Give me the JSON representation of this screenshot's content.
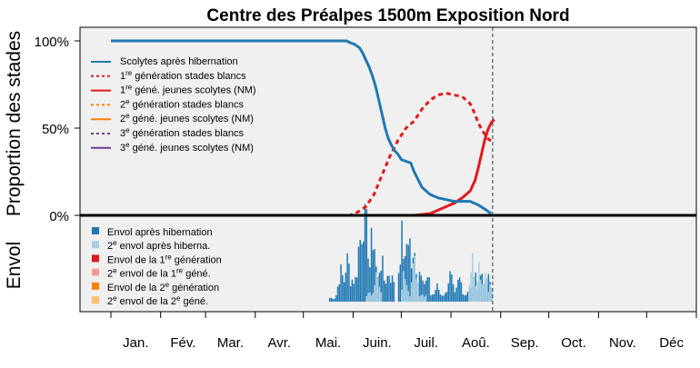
{
  "chart_data": {
    "type": "line",
    "title": "Centre des Préalpes 1500m Exposition Nord",
    "ylabel_top": "Proportion des stades",
    "ylabel_bottom": "Envol",
    "y_ticks": [
      {
        "value": 0,
        "label": "0%"
      },
      {
        "value": 0.5,
        "label": "50%"
      },
      {
        "value": 1,
        "label": "100%"
      }
    ],
    "months": [
      "Jan.",
      "Fév.",
      "Mar.",
      "Avr.",
      "Mai.",
      "Juin.",
      "Juil.",
      "Aoû.",
      "Sep.",
      "Oct.",
      "Nov.",
      "Déc"
    ],
    "month_starts": [
      1,
      32,
      60,
      91,
      121,
      152,
      182,
      213,
      244,
      274,
      305,
      335
    ],
    "x_range": [
      1,
      366
    ],
    "current_day": 239,
    "colors": {
      "panel_bg": "#f0f0f0",
      "scolytes": "#1f78b4",
      "gen1": "#e31a1c",
      "gen2": "#ff7f00",
      "gen3": "#6a3d9a",
      "envol1": "#1f78b4",
      "envol2": "#a6cee3",
      "envol_gen1": "#e31a1c",
      "envol2_gen1": "#fb9a99",
      "envol_gen2": "#ff7f00",
      "envol2_gen2": "#fdbf6f"
    },
    "legend_top": [
      {
        "pre": "Scolytes après hibernation",
        "sup": "",
        "post": "",
        "color": "#1f78b4",
        "dash": false
      },
      {
        "pre": "1",
        "sup": "re",
        "post": " génération stades blancs",
        "color": "#e31a1c",
        "dash": true
      },
      {
        "pre": "1",
        "sup": "re",
        "post": " géné. jeunes scolytes (NM)",
        "color": "#e31a1c",
        "dash": false
      },
      {
        "pre": "2",
        "sup": "e",
        "post": " génération stades blancs",
        "color": "#ff7f00",
        "dash": true
      },
      {
        "pre": "2",
        "sup": "e",
        "post": " géné. jeunes scolytes (NM)",
        "color": "#ff7f00",
        "dash": false
      },
      {
        "pre": "3",
        "sup": "e",
        "post": " génération stades blancs",
        "color": "#6a3d9a",
        "dash": true
      },
      {
        "pre": "3",
        "sup": "e",
        "post": " géné. jeunes scolytes (NM)",
        "color": "#6a3d9a",
        "dash": false
      }
    ],
    "legend_bottom": [
      {
        "pre": "Envol après hibernation",
        "sup": "",
        "post": "",
        "mid": "",
        "sup2": "",
        "post2": "",
        "color": "#1f78b4"
      },
      {
        "pre": "2",
        "sup": "e",
        "post": " envol après hiberna.",
        "mid": "",
        "sup2": "",
        "post2": "",
        "color": "#a6cee3"
      },
      {
        "pre": "Envol de la 1",
        "sup": "re",
        "post": " génération",
        "mid": "",
        "sup2": "",
        "post2": "",
        "color": "#e31a1c"
      },
      {
        "pre": "2",
        "sup": "e",
        "post": " envol de la 1",
        "mid": "",
        "sup2": "re",
        "post2": " géné.",
        "color": "#fb9a99"
      },
      {
        "pre": "Envol de la 2",
        "sup": "e",
        "post": " génération",
        "mid": "",
        "sup2": "",
        "post2": "",
        "color": "#ff7f00"
      },
      {
        "pre": "2",
        "sup": "e",
        "post": " envol de la 2",
        "mid": "",
        "sup2": "e",
        "post2": " géné.",
        "color": "#fdbf6f"
      }
    ],
    "series": {
      "scolytes": {
        "x": [
          1,
          100,
          140,
          148,
          150,
          153,
          156,
          158,
          160,
          162,
          164,
          166,
          168,
          170,
          172,
          174,
          176,
          178,
          180,
          182,
          185,
          188,
          190,
          195,
          200,
          205,
          210,
          215,
          220,
          225,
          230,
          235,
          238
        ],
        "y": [
          1.0,
          1.0,
          1.0,
          1.0,
          0.99,
          0.98,
          0.96,
          0.93,
          0.89,
          0.85,
          0.8,
          0.74,
          0.66,
          0.58,
          0.5,
          0.44,
          0.4,
          0.37,
          0.35,
          0.32,
          0.31,
          0.3,
          0.25,
          0.16,
          0.12,
          0.1,
          0.09,
          0.08,
          0.08,
          0.08,
          0.06,
          0.03,
          0.01
        ]
      },
      "gen1_blancs": {
        "x": [
          1,
          150,
          155,
          160,
          165,
          170,
          175,
          180,
          185,
          190,
          195,
          200,
          205,
          210,
          215,
          220,
          225,
          228,
          230,
          233,
          236,
          239
        ],
        "y": [
          0,
          0,
          0.02,
          0.05,
          0.12,
          0.23,
          0.34,
          0.43,
          0.5,
          0.54,
          0.61,
          0.66,
          0.69,
          0.7,
          0.69,
          0.68,
          0.64,
          0.58,
          0.53,
          0.48,
          0.44,
          0.42
        ]
      },
      "gen1_jeunes": {
        "x": [
          1,
          190,
          200,
          205,
          210,
          215,
          220,
          225,
          228,
          230,
          232,
          234,
          236,
          238,
          240
        ],
        "y": [
          0,
          0,
          0.01,
          0.03,
          0.05,
          0.07,
          0.1,
          0.14,
          0.2,
          0.27,
          0.35,
          0.43,
          0.49,
          0.53,
          0.55
        ]
      }
    },
    "envol": {
      "ymax": 1,
      "blocks": [
        {
          "name": "envol-hib-1",
          "color": "#1f78b4",
          "start": 137,
          "end": 150,
          "base": 0.05,
          "peaks": [
            [
              144,
              0.4
            ],
            [
              148,
              0.55
            ]
          ]
        },
        {
          "name": "envol-hib-2",
          "color": "#1f78b4",
          "start": 150,
          "end": 178,
          "base": 0.3,
          "peaks": [
            [
              156,
              0.85
            ],
            [
              158,
              1.2
            ],
            [
              160,
              0.95
            ],
            [
              164,
              0.9
            ],
            [
              169,
              0.55
            ],
            [
              174,
              0.4
            ]
          ]
        },
        {
          "name": "envol-hib-3",
          "color": "#1f78b4",
          "start": 180,
          "end": 200,
          "base": 0.2,
          "peaks": [
            [
              182,
              0.85
            ],
            [
              186,
              0.95
            ],
            [
              190,
              0.6
            ],
            [
              194,
              0.5
            ],
            [
              198,
              0.3
            ]
          ]
        },
        {
          "name": "envol-hib-4",
          "color": "#1f78b4",
          "start": 200,
          "end": 226,
          "base": 0.1,
          "peaks": [
            [
              204,
              0.2
            ],
            [
              212,
              0.35
            ],
            [
              218,
              0.3
            ],
            [
              224,
              0.2
            ]
          ]
        },
        {
          "name": "envol-hib-5",
          "color": "#1f78b4",
          "start": 226,
          "end": 239,
          "base": 0.15,
          "peaks": [
            [
              228,
              0.3
            ],
            [
              232,
              0.4
            ],
            [
              236,
              0.3
            ]
          ]
        },
        {
          "name": "envol2-hib-1",
          "color": "#a6cee3",
          "start": 160,
          "end": 170,
          "base": 0.1,
          "peaks": [
            [
              166,
              0.35
            ]
          ]
        },
        {
          "name": "envol2-hib-2",
          "color": "#a6cee3",
          "start": 182,
          "end": 198,
          "base": 0.1,
          "peaks": [
            [
              184,
              0.4
            ],
            [
              190,
              0.5
            ]
          ]
        },
        {
          "name": "envol2-hib-3",
          "color": "#a6cee3",
          "start": 224,
          "end": 239,
          "base": 0.2,
          "peaks": [
            [
              226,
              0.55
            ],
            [
              230,
              0.5
            ],
            [
              234,
              0.4
            ]
          ]
        }
      ]
    }
  }
}
